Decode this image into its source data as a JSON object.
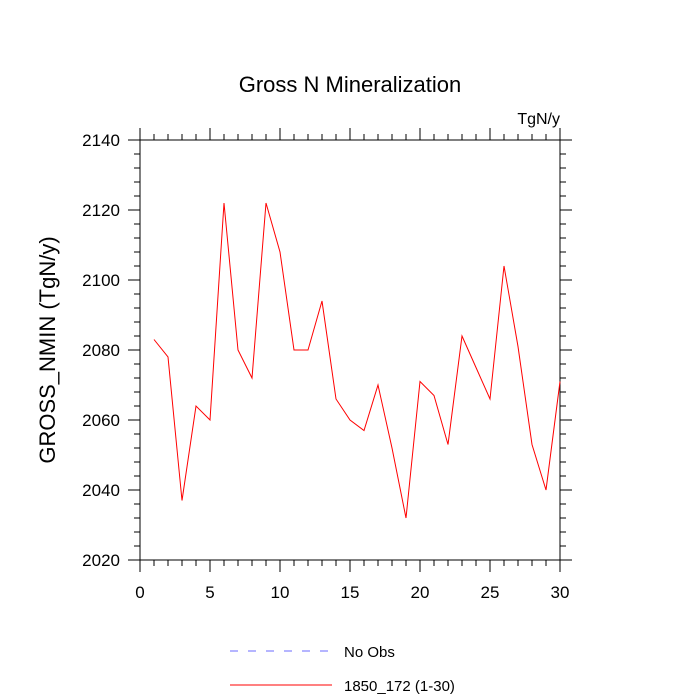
{
  "chart_data": {
    "type": "line",
    "title": "Gross N Mineralization",
    "units": "TgN/y",
    "xlabel": "",
    "ylabel": "GROSS_NMIN  (TgN/y)",
    "xlim": [
      0,
      30
    ],
    "ylim": [
      2020,
      2140
    ],
    "x_ticks": [
      0,
      5,
      10,
      15,
      20,
      25,
      30
    ],
    "y_ticks": [
      2020,
      2040,
      2060,
      2080,
      2100,
      2120,
      2140
    ],
    "x_minor_step": 1,
    "y_minor_step": 4,
    "grid": false,
    "legend_position": "bottom",
    "series": [
      {
        "name": "No Obs",
        "color": "#6b6bff",
        "style": "dashed",
        "x": [],
        "values": []
      },
      {
        "name": "1850_172 (1-30)",
        "color": "#ff0000",
        "style": "solid",
        "x": [
          1,
          2,
          3,
          4,
          5,
          6,
          7,
          8,
          9,
          10,
          11,
          12,
          13,
          14,
          15,
          16,
          17,
          18,
          19,
          20,
          21,
          22,
          23,
          24,
          25,
          26,
          27,
          28,
          29,
          30
        ],
        "values": [
          2083,
          2078,
          2037,
          2064,
          2060,
          2122,
          2080,
          2072,
          2122,
          2108,
          2080,
          2080,
          2094,
          2066,
          2060,
          2057,
          2070,
          2052,
          2032,
          2071,
          2067,
          2053,
          2084,
          2075,
          2066,
          2104,
          2081,
          2053,
          2040,
          2071
        ]
      }
    ]
  }
}
